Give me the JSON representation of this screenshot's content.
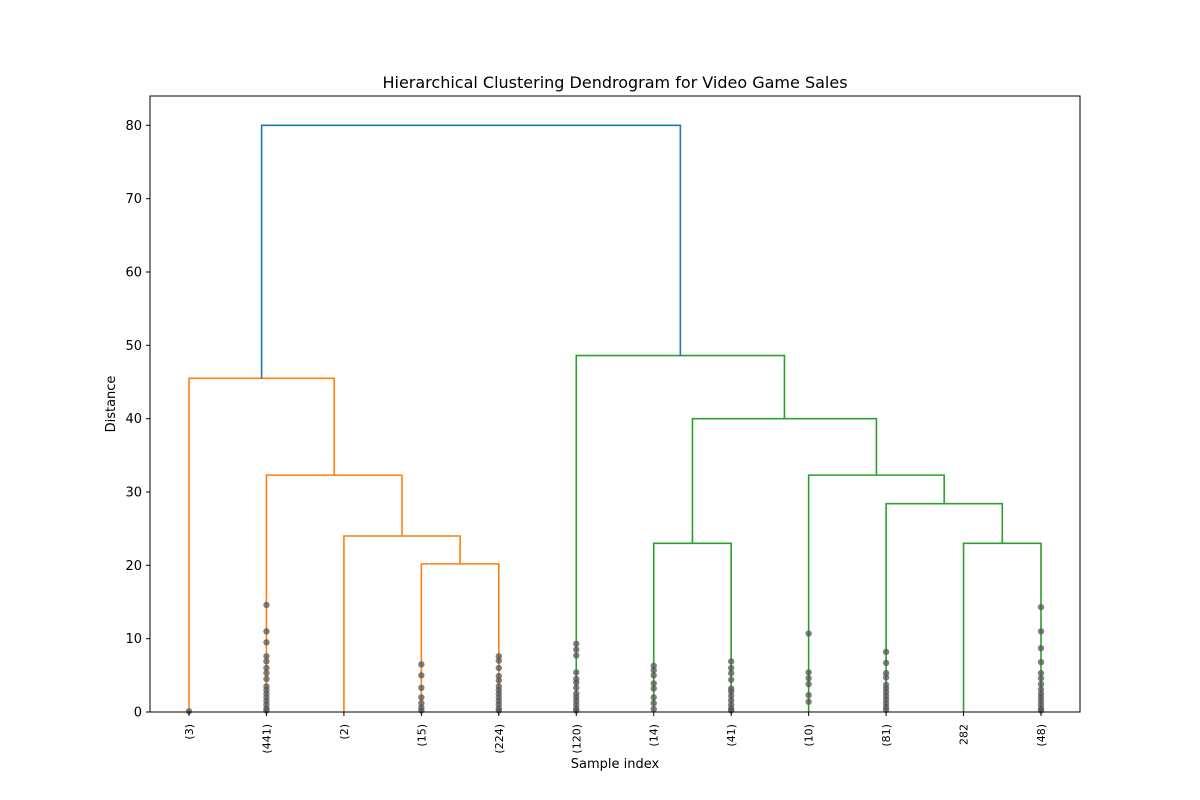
{
  "chart_data": {
    "type": "dendrogram",
    "title": "Hierarchical Clustering Dendrogram for Video Game Sales",
    "xlabel": "Sample index",
    "ylabel": "Distance",
    "ylim": [
      0,
      84
    ],
    "yticks": [
      0,
      10,
      20,
      30,
      40,
      50,
      60,
      70,
      80
    ],
    "leaves": [
      "(3)",
      "(441)",
      "(2)",
      "(15)",
      "(224)",
      "(120)",
      "(14)",
      "(41)",
      "(10)",
      "(81)",
      "282",
      "(48)"
    ],
    "link_colors": {
      "orange": "#ff7f0e",
      "green": "#2ca02c",
      "blue": "#1f77b4"
    },
    "links": [
      {
        "left": 3,
        "right": 4,
        "height": 20.2,
        "color": "orange"
      },
      {
        "left": 2,
        "right": "m0",
        "height": 24.0,
        "color": "orange"
      },
      {
        "left": 1,
        "right": "m1",
        "height": 32.3,
        "color": "orange"
      },
      {
        "left": 0,
        "right": "m2",
        "height": 45.5,
        "color": "orange"
      },
      {
        "left": 6,
        "right": 7,
        "height": 23.0,
        "color": "green"
      },
      {
        "left": 10,
        "right": 11,
        "height": 23.0,
        "color": "green"
      },
      {
        "left": 9,
        "right": "m5",
        "height": 28.4,
        "color": "green"
      },
      {
        "left": 8,
        "right": "m6",
        "height": 32.3,
        "color": "green"
      },
      {
        "left": "m4",
        "right": "m7",
        "height": 40.0,
        "color": "green"
      },
      {
        "left": 5,
        "right": "m8",
        "height": 48.6,
        "color": "green"
      },
      {
        "left": "m3",
        "right": "m9",
        "height": 80.0,
        "color": "blue"
      }
    ],
    "leaf_points": {
      "color": "#555555",
      "values": [
        [
          0.1
        ],
        [
          14.6,
          11.0,
          9.5,
          7.6,
          6.9,
          6.0,
          5.3,
          4.5,
          3.5,
          3.0,
          2.5,
          2.0,
          1.5,
          1.0,
          0.5,
          0.2
        ],
        [],
        [
          6.5,
          5.0,
          3.3,
          2.0,
          1.2,
          0.6,
          0.2
        ],
        [
          7.6,
          7.0,
          6.0,
          4.9,
          4.3,
          3.5,
          3.0,
          2.5,
          2.0,
          1.5,
          1.0,
          0.5,
          0.2
        ],
        [
          9.3,
          8.5,
          7.7,
          5.4,
          4.5,
          4.0,
          3.3,
          2.5,
          2.0,
          1.5,
          1.0,
          0.5,
          0.2
        ],
        [
          6.3,
          5.7,
          5.0,
          3.9,
          3.2,
          2.0,
          1.2,
          0.4
        ],
        [
          6.9,
          6.0,
          5.3,
          4.4,
          3.2,
          2.8,
          2.2,
          1.6,
          1.0,
          0.5,
          0.2
        ],
        [
          10.7,
          5.4,
          4.6,
          3.8,
          2.3,
          1.4
        ],
        [
          8.2,
          6.7,
          5.3,
          4.7,
          3.7,
          3.2,
          2.7,
          2.2,
          1.7,
          1.2,
          0.7,
          0.3
        ],
        [],
        [
          14.3,
          11.0,
          8.7,
          6.8,
          5.3,
          4.6,
          3.8,
          3.1,
          2.5,
          2.0,
          1.5,
          1.0,
          0.5,
          0.2
        ]
      ]
    }
  }
}
